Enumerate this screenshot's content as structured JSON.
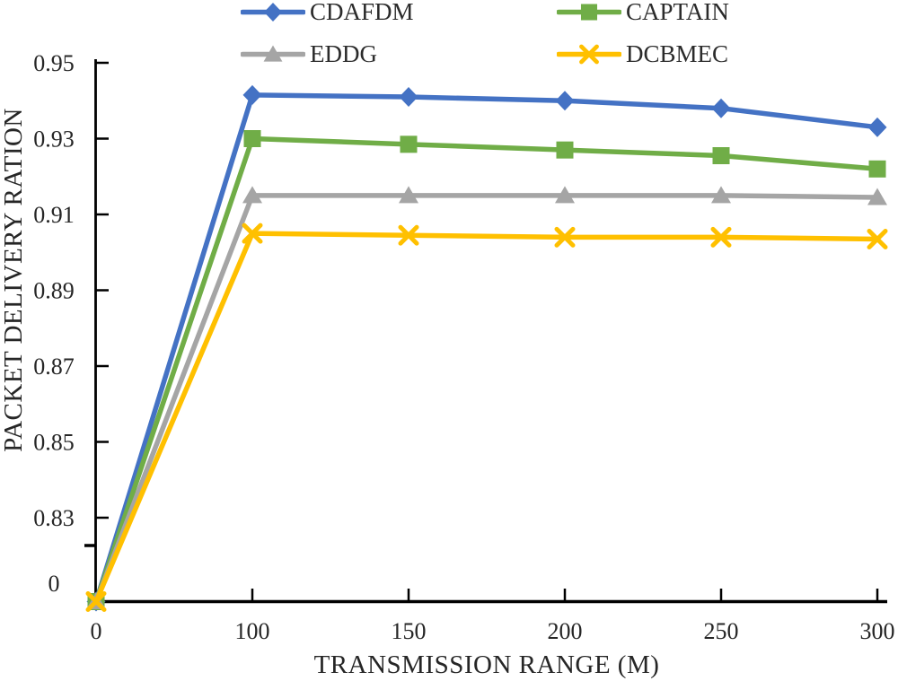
{
  "chart_data": {
    "type": "line",
    "title": "",
    "xlabel": "TRANSMISSION RANGE (M)",
    "ylabel": "PACKET DELIVERY RATION",
    "categories": [
      0,
      100,
      150,
      200,
      250,
      300
    ],
    "x_tick_labels": [
      "0",
      "100",
      "150",
      "200",
      "250",
      "300"
    ],
    "y_tick_labels": [
      "0.95",
      "0.93",
      "0.91",
      "0.89",
      "0.87",
      "0.85",
      "0.83",
      "0"
    ],
    "y_axis": {
      "style": "broken",
      "linear_top": 0.95,
      "linear_bottom": 0.83,
      "step": 0.02,
      "bottom_label": "0"
    },
    "grid": false,
    "legend_position": "top",
    "axis_color": "#000000",
    "text_color": "#262626",
    "series": [
      {
        "name": "CDAFDM",
        "color": "#4472C4",
        "marker": "diamond",
        "values": [
          0,
          0.9415,
          0.941,
          0.94,
          0.938,
          0.933
        ]
      },
      {
        "name": "CAPTAIN",
        "color": "#70AD47",
        "marker": "square",
        "values": [
          0,
          0.93,
          0.9285,
          0.927,
          0.9255,
          0.922
        ]
      },
      {
        "name": "EDDG",
        "color": "#A5A5A5",
        "marker": "triangle",
        "values": [
          0,
          0.915,
          0.915,
          0.915,
          0.915,
          0.9145
        ]
      },
      {
        "name": "DCBMEC",
        "color": "#FFC000",
        "marker": "x-cross",
        "values": [
          0,
          0.905,
          0.9045,
          0.904,
          0.904,
          0.9035
        ]
      }
    ]
  }
}
